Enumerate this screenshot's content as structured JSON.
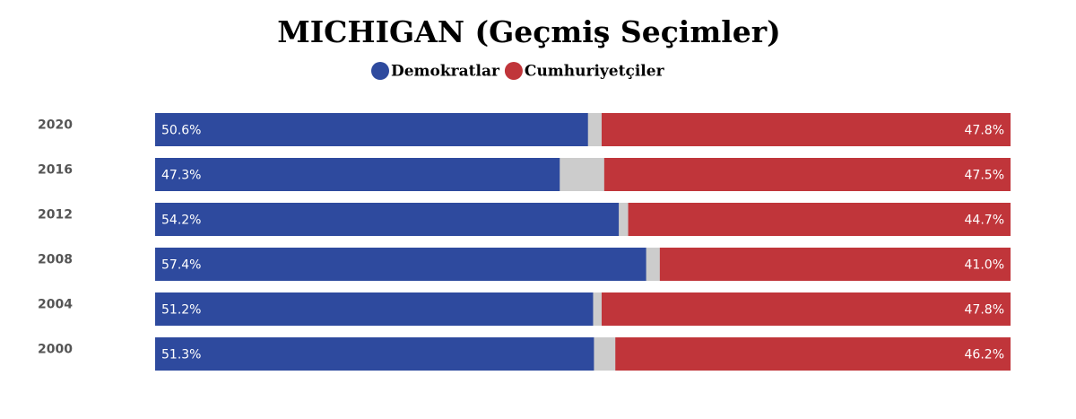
{
  "chart_data": {
    "type": "bar",
    "orientation": "horizontal",
    "title": "MICHIGAN (Geçmiş Seçimler)",
    "categories": [
      "2020",
      "2016",
      "2012",
      "2008",
      "2004",
      "2000"
    ],
    "xlim": [
      0,
      100
    ],
    "track_color": "#cccccc",
    "series": [
      {
        "name": "Demokratlar",
        "color": "#2e4a9e",
        "values": [
          50.6,
          47.3,
          54.2,
          57.4,
          51.2,
          51.3
        ],
        "value_labels": [
          "50.6%",
          "47.3%",
          "54.2%",
          "57.4%",
          "51.2%",
          "51.3%"
        ]
      },
      {
        "name": "Cumhuriyetçiler",
        "color": "#c0353a",
        "values": [
          47.8,
          47.5,
          44.7,
          41.0,
          47.8,
          46.2
        ],
        "value_labels": [
          "47.8%",
          "47.5%",
          "44.7%",
          "41.0%",
          "47.8%",
          "46.2%"
        ]
      }
    ]
  }
}
